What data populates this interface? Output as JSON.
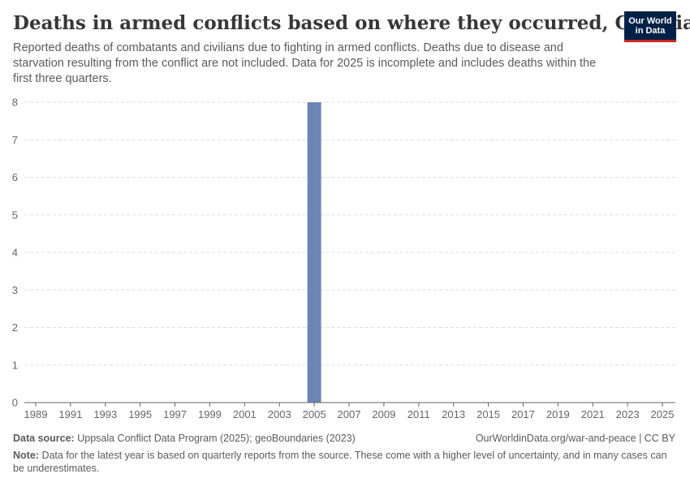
{
  "header": {
    "title": "Deaths in armed conflicts based on where they occurred, Gambia",
    "subtitle": "Reported deaths of combatants and civilians due to fighting in armed conflicts. Deaths due to disease and starvation resulting from the conflict are not included. Data for 2025 is incomplete and includes deaths within the first three quarters.",
    "logo_line1": "Our World",
    "logo_line2": "in Data"
  },
  "footer": {
    "source_label": "Data source:",
    "source_text": "Uppsala Conflict Data Program (2025); geoBoundaries (2023)",
    "url_text": "OurWorldinData.org/war-and-peace | CC BY",
    "note_label": "Note:",
    "note_text": "Data for the latest year is based on quarterly reports from the source. These come with a higher level of uncertainty, and in many cases can be underestimates."
  },
  "colors": {
    "bar": "#6d85b4",
    "grid": "#dddddd",
    "axis": "#666666",
    "logo_bg": "#002147",
    "logo_accent": "#ce261e"
  },
  "chart_data": {
    "type": "bar",
    "title": "Deaths in armed conflicts based on where they occurred, Gambia",
    "xlabel": "",
    "ylabel": "",
    "x": [
      1989,
      1990,
      1991,
      1992,
      1993,
      1994,
      1995,
      1996,
      1997,
      1998,
      1999,
      2000,
      2001,
      2002,
      2003,
      2004,
      2005,
      2006,
      2007,
      2008,
      2009,
      2010,
      2011,
      2012,
      2013,
      2014,
      2015,
      2016,
      2017,
      2018,
      2019,
      2020,
      2021,
      2022,
      2023,
      2024,
      2025
    ],
    "values": [
      0,
      0,
      0,
      0,
      0,
      0,
      0,
      0,
      0,
      0,
      0,
      0,
      0,
      0,
      0,
      0,
      8,
      0,
      0,
      0,
      0,
      0,
      0,
      0,
      0,
      0,
      0,
      0,
      0,
      0,
      0,
      0,
      0,
      0,
      0,
      0,
      0
    ],
    "x_tick_labels": [
      "1989",
      "1991",
      "1993",
      "1995",
      "1997",
      "1999",
      "2001",
      "2003",
      "2005",
      "2007",
      "2009",
      "2011",
      "2013",
      "2015",
      "2017",
      "2019",
      "2021",
      "2023",
      "2025"
    ],
    "y_ticks": [
      0,
      1,
      2,
      3,
      4,
      5,
      6,
      7,
      8
    ],
    "ylim": [
      0,
      8
    ],
    "grid": true
  }
}
